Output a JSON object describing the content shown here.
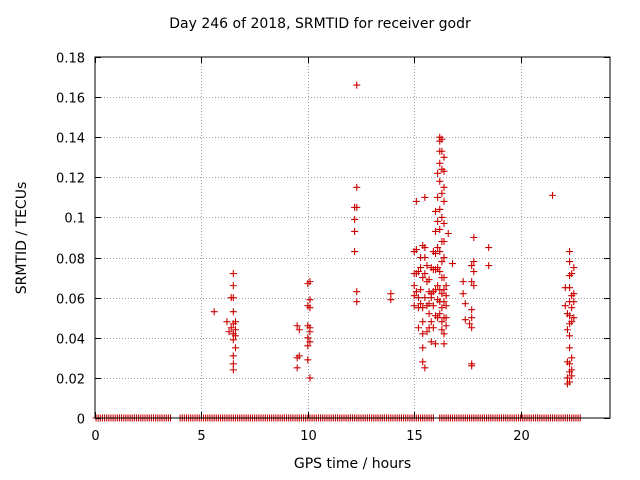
{
  "chart_data": {
    "type": "scatter",
    "title": "Day 246 of 2018, SRMTID for receiver godr",
    "xlabel": "GPS time / hours",
    "ylabel": "SRMTID / TECUs",
    "xlim": [
      0,
      24.2
    ],
    "ylim": [
      0,
      0.18
    ],
    "xticks": [
      0,
      5,
      10,
      15,
      20
    ],
    "yticks": [
      0,
      0.02,
      0.04,
      0.06,
      0.08,
      0.1,
      0.12,
      0.14,
      0.16,
      0.18
    ],
    "ytick_labels": [
      "0",
      "0.02",
      "0.04",
      "0.06",
      "0.08",
      "0.1",
      "0.12",
      "0.14",
      "0.16",
      "0.18"
    ],
    "grid": true,
    "marker": "+",
    "color": "#cc0000",
    "baseline": {
      "y": 0,
      "x_ranges": [
        [
          0.05,
          3.6
        ],
        [
          4.0,
          15.9
        ],
        [
          16.2,
          22.8
        ]
      ],
      "x_step": 0.1
    },
    "series": [
      {
        "name": "SRMTID",
        "points": [
          [
            5.6,
            0.053
          ],
          [
            6.2,
            0.048
          ],
          [
            6.3,
            0.043
          ],
          [
            6.4,
            0.045
          ],
          [
            6.4,
            0.06
          ],
          [
            6.5,
            0.06
          ],
          [
            6.5,
            0.072
          ],
          [
            6.5,
            0.066
          ],
          [
            6.5,
            0.053
          ],
          [
            6.5,
            0.047
          ],
          [
            6.5,
            0.042
          ],
          [
            6.5,
            0.039
          ],
          [
            6.5,
            0.031
          ],
          [
            6.5,
            0.027
          ],
          [
            6.5,
            0.024
          ],
          [
            6.6,
            0.048
          ],
          [
            6.6,
            0.044
          ],
          [
            6.6,
            0.041
          ],
          [
            6.6,
            0.035
          ],
          [
            9.5,
            0.046
          ],
          [
            9.5,
            0.03
          ],
          [
            9.5,
            0.025
          ],
          [
            9.6,
            0.044
          ],
          [
            9.6,
            0.031
          ],
          [
            10.0,
            0.046
          ],
          [
            10.0,
            0.04
          ],
          [
            10.0,
            0.036
          ],
          [
            10.0,
            0.029
          ],
          [
            10.0,
            0.056
          ],
          [
            10.0,
            0.067
          ],
          [
            10.1,
            0.068
          ],
          [
            10.1,
            0.059
          ],
          [
            10.1,
            0.055
          ],
          [
            10.1,
            0.045
          ],
          [
            10.1,
            0.043
          ],
          [
            10.1,
            0.038
          ],
          [
            10.1,
            0.02
          ],
          [
            12.2,
            0.105
          ],
          [
            12.2,
            0.099
          ],
          [
            12.2,
            0.093
          ],
          [
            12.2,
            0.083
          ],
          [
            12.3,
            0.166
          ],
          [
            12.3,
            0.115
          ],
          [
            12.3,
            0.105
          ],
          [
            12.3,
            0.063
          ],
          [
            12.3,
            0.058
          ],
          [
            13.9,
            0.062
          ],
          [
            13.9,
            0.059
          ],
          [
            15.0,
            0.083
          ],
          [
            15.0,
            0.072
          ],
          [
            15.0,
            0.066
          ],
          [
            15.0,
            0.061
          ],
          [
            15.0,
            0.056
          ],
          [
            15.1,
            0.108
          ],
          [
            15.1,
            0.084
          ],
          [
            15.1,
            0.072
          ],
          [
            15.1,
            0.063
          ],
          [
            15.2,
            0.073
          ],
          [
            15.2,
            0.06
          ],
          [
            15.2,
            0.055
          ],
          [
            15.2,
            0.045
          ],
          [
            15.3,
            0.08
          ],
          [
            15.3,
            0.075
          ],
          [
            15.3,
            0.064
          ],
          [
            15.3,
            0.057
          ],
          [
            15.4,
            0.086
          ],
          [
            15.4,
            0.07
          ],
          [
            15.4,
            0.055
          ],
          [
            15.4,
            0.048
          ],
          [
            15.4,
            0.042
          ],
          [
            15.4,
            0.035
          ],
          [
            15.4,
            0.028
          ],
          [
            15.5,
            0.11
          ],
          [
            15.5,
            0.085
          ],
          [
            15.5,
            0.08
          ],
          [
            15.5,
            0.072
          ],
          [
            15.5,
            0.06
          ],
          [
            15.5,
            0.025
          ],
          [
            15.6,
            0.076
          ],
          [
            15.6,
            0.068
          ],
          [
            15.6,
            0.056
          ],
          [
            15.6,
            0.043
          ],
          [
            15.7,
            0.069
          ],
          [
            15.7,
            0.063
          ],
          [
            15.7,
            0.057
          ],
          [
            15.7,
            0.052
          ],
          [
            15.7,
            0.045
          ],
          [
            15.8,
            0.075
          ],
          [
            15.8,
            0.062
          ],
          [
            15.8,
            0.06
          ],
          [
            15.8,
            0.048
          ],
          [
            15.8,
            0.038
          ],
          [
            15.9,
            0.083
          ],
          [
            15.9,
            0.074
          ],
          [
            15.9,
            0.063
          ],
          [
            15.9,
            0.056
          ],
          [
            15.9,
            0.045
          ],
          [
            16.0,
            0.103
          ],
          [
            16.0,
            0.093
          ],
          [
            16.0,
            0.082
          ],
          [
            16.0,
            0.074
          ],
          [
            16.0,
            0.064
          ],
          [
            16.0,
            0.051
          ],
          [
            16.0,
            0.037
          ],
          [
            16.1,
            0.122
          ],
          [
            16.1,
            0.11
          ],
          [
            16.1,
            0.098
          ],
          [
            16.1,
            0.085
          ],
          [
            16.1,
            0.075
          ],
          [
            16.1,
            0.066
          ],
          [
            16.1,
            0.059
          ],
          [
            16.1,
            0.05
          ],
          [
            16.2,
            0.14
          ],
          [
            16.2,
            0.138
          ],
          [
            16.2,
            0.133
          ],
          [
            16.2,
            0.127
          ],
          [
            16.2,
            0.118
          ],
          [
            16.2,
            0.104
          ],
          [
            16.2,
            0.094
          ],
          [
            16.2,
            0.083
          ],
          [
            16.2,
            0.073
          ],
          [
            16.2,
            0.064
          ],
          [
            16.2,
            0.058
          ],
          [
            16.2,
            0.052
          ],
          [
            16.3,
            0.139
          ],
          [
            16.3,
            0.133
          ],
          [
            16.3,
            0.124
          ],
          [
            16.3,
            0.112
          ],
          [
            16.3,
            0.1
          ],
          [
            16.3,
            0.088
          ],
          [
            16.3,
            0.078
          ],
          [
            16.3,
            0.07
          ],
          [
            16.3,
            0.062
          ],
          [
            16.3,
            0.055
          ],
          [
            16.3,
            0.048
          ],
          [
            16.3,
            0.044
          ],
          [
            16.4,
            0.13
          ],
          [
            16.4,
            0.123
          ],
          [
            16.4,
            0.115
          ],
          [
            16.4,
            0.108
          ],
          [
            16.4,
            0.097
          ],
          [
            16.4,
            0.088
          ],
          [
            16.4,
            0.08
          ],
          [
            16.4,
            0.07
          ],
          [
            16.4,
            0.064
          ],
          [
            16.4,
            0.058
          ],
          [
            16.4,
            0.05
          ],
          [
            16.4,
            0.042
          ],
          [
            16.4,
            0.037
          ],
          [
            16.5,
            0.066
          ],
          [
            16.5,
            0.061
          ],
          [
            16.5,
            0.056
          ],
          [
            16.5,
            0.05
          ],
          [
            16.5,
            0.046
          ],
          [
            16.6,
            0.092
          ],
          [
            16.8,
            0.077
          ],
          [
            17.3,
            0.068
          ],
          [
            17.3,
            0.062
          ],
          [
            17.4,
            0.057
          ],
          [
            17.4,
            0.049
          ],
          [
            17.6,
            0.047
          ],
          [
            17.7,
            0.076
          ],
          [
            17.7,
            0.068
          ],
          [
            17.7,
            0.054
          ],
          [
            17.7,
            0.05
          ],
          [
            17.7,
            0.045
          ],
          [
            17.7,
            0.027
          ],
          [
            17.7,
            0.026
          ],
          [
            17.8,
            0.09
          ],
          [
            17.8,
            0.078
          ],
          [
            17.8,
            0.073
          ],
          [
            17.8,
            0.066
          ],
          [
            18.5,
            0.085
          ],
          [
            18.5,
            0.076
          ],
          [
            21.5,
            0.111
          ],
          [
            22.1,
            0.065
          ],
          [
            22.1,
            0.056
          ],
          [
            22.2,
            0.052
          ],
          [
            22.2,
            0.044
          ],
          [
            22.2,
            0.028
          ],
          [
            22.2,
            0.02
          ],
          [
            22.2,
            0.017
          ],
          [
            22.3,
            0.083
          ],
          [
            22.3,
            0.078
          ],
          [
            22.3,
            0.071
          ],
          [
            22.3,
            0.065
          ],
          [
            22.3,
            0.058
          ],
          [
            22.3,
            0.051
          ],
          [
            22.3,
            0.047
          ],
          [
            22.3,
            0.041
          ],
          [
            22.3,
            0.035
          ],
          [
            22.3,
            0.027
          ],
          [
            22.3,
            0.023
          ],
          [
            22.3,
            0.018
          ],
          [
            22.4,
            0.072
          ],
          [
            22.4,
            0.061
          ],
          [
            22.4,
            0.055
          ],
          [
            22.4,
            0.048
          ],
          [
            22.4,
            0.03
          ],
          [
            22.4,
            0.024
          ],
          [
            22.4,
            0.021
          ],
          [
            22.5,
            0.075
          ],
          [
            22.5,
            0.062
          ],
          [
            22.5,
            0.058
          ],
          [
            22.5,
            0.05
          ]
        ]
      }
    ]
  }
}
